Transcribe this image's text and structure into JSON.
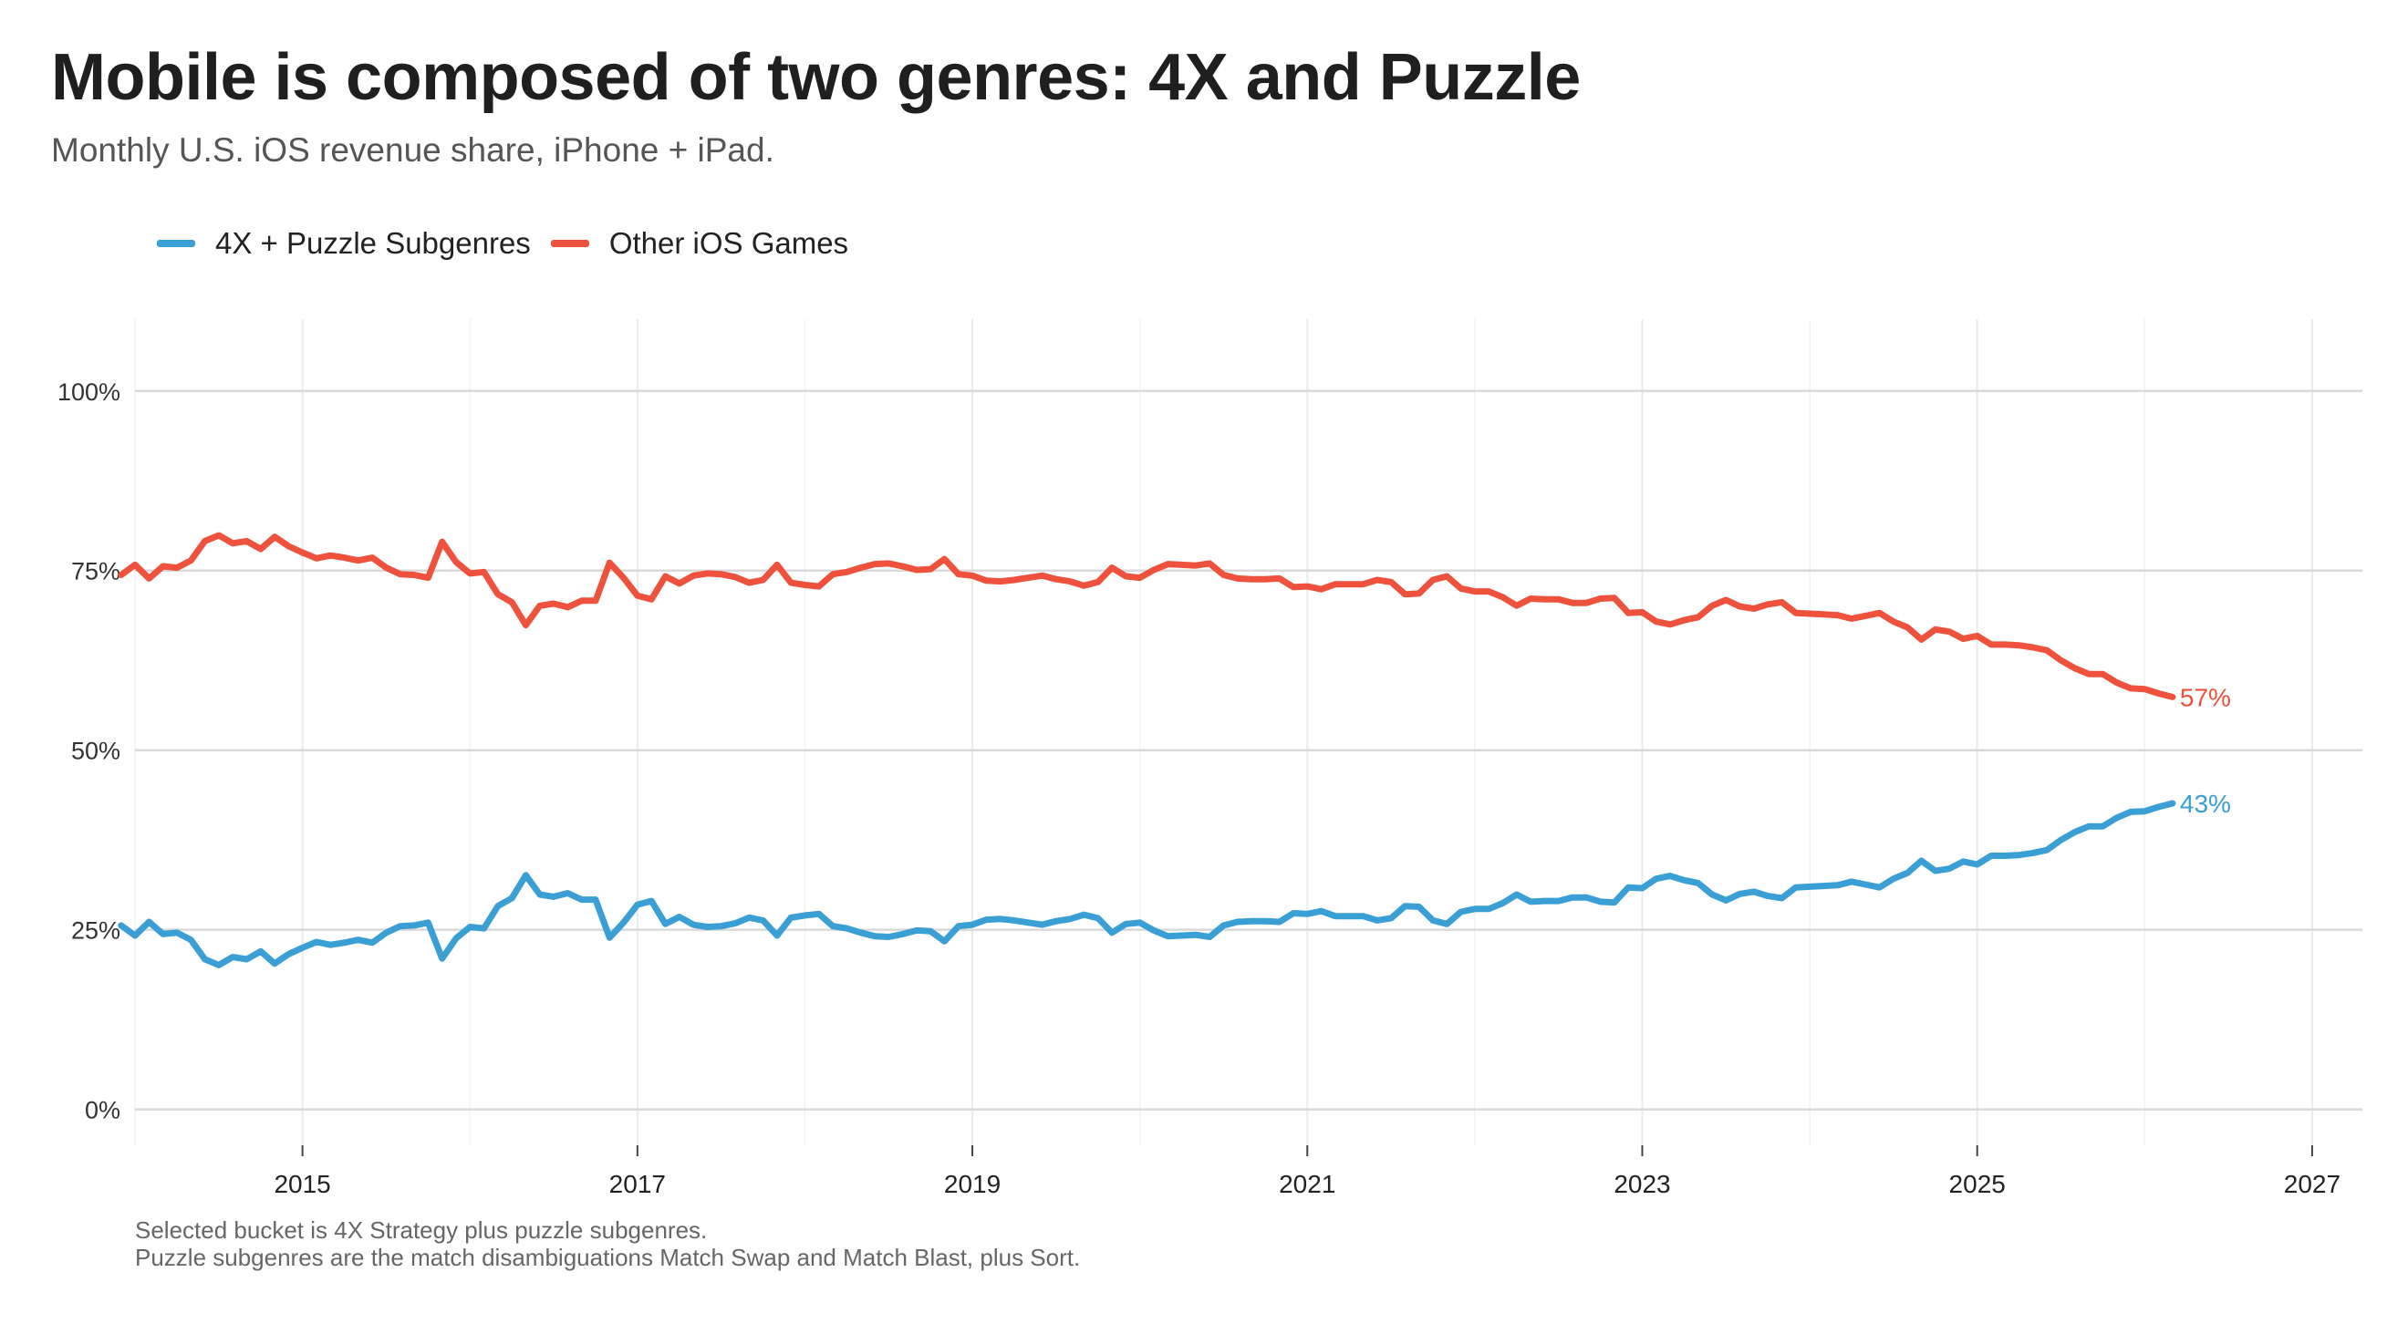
{
  "title": "Mobile is composed of two genres: 4X and Puzzle",
  "subtitle": "Monthly U.S. iOS revenue share, iPhone + iPad.",
  "footer": {
    "line1": "Selected bucket is 4X Strategy plus puzzle subgenres.",
    "line2": "Puzzle subgenres are the match disambiguations Match Swap and Match Blast, plus Sort."
  },
  "chart_data": {
    "type": "line",
    "legend_position": "top-left",
    "grid": true,
    "xlim": [
      2014.0,
      2027.3
    ],
    "ylim": [
      -5,
      110
    ],
    "x_ticks": [
      2015,
      2017,
      2019,
      2021,
      2023,
      2025,
      2027
    ],
    "x_tick_labels": [
      "2015",
      "2017",
      "2019",
      "2021",
      "2023",
      "2025",
      "2027"
    ],
    "y_ticks": [
      0,
      25,
      50,
      75,
      100
    ],
    "y_tick_labels": [
      "0%",
      "25%",
      "50%",
      "75%",
      "100%"
    ],
    "x_start": 2013.917,
    "x_step": 0.08333,
    "series": [
      {
        "name": "4X + Puzzle Subgenres",
        "color": "#3a9fd4",
        "end_label": "43%",
        "values": [
          25.6,
          24.2,
          26.1,
          24.4,
          24.6,
          23.6,
          20.9,
          20.1,
          21.2,
          20.9,
          22.0,
          20.3,
          21.6,
          22.5,
          23.3,
          22.9,
          23.2,
          23.6,
          23.2,
          24.6,
          25.5,
          25.6,
          26.0,
          21.0,
          23.8,
          25.4,
          25.2,
          28.3,
          29.4,
          32.6,
          29.9,
          29.6,
          30.1,
          29.2,
          29.2,
          23.9,
          26.0,
          28.5,
          29.0,
          25.8,
          26.8,
          25.7,
          25.4,
          25.5,
          25.9,
          26.7,
          26.3,
          24.2,
          26.7,
          27.0,
          27.2,
          25.5,
          25.2,
          24.6,
          24.1,
          24.0,
          24.4,
          24.9,
          24.8,
          23.4,
          25.5,
          25.7,
          26.4,
          26.5,
          26.3,
          26.0,
          25.7,
          26.2,
          26.5,
          27.1,
          26.6,
          24.6,
          25.8,
          26.0,
          24.9,
          24.1,
          24.2,
          24.3,
          24.0,
          25.6,
          26.1,
          26.2,
          26.2,
          26.1,
          27.3,
          27.2,
          27.6,
          26.9,
          26.9,
          26.9,
          26.3,
          26.6,
          28.3,
          28.2,
          26.3,
          25.8,
          27.5,
          27.9,
          27.9,
          28.7,
          29.9,
          28.9,
          29.0,
          29.0,
          29.5,
          29.5,
          28.9,
          28.8,
          30.9,
          30.8,
          32.1,
          32.5,
          31.9,
          31.5,
          29.9,
          29.1,
          30.0,
          30.3,
          29.7,
          29.4,
          30.9,
          31.0,
          31.1,
          31.2,
          31.7,
          31.3,
          30.9,
          32.1,
          32.9,
          34.6,
          33.2,
          33.5,
          34.5,
          34.1,
          35.3,
          35.3,
          35.4,
          35.7,
          36.1,
          37.5,
          38.6,
          39.4,
          39.4,
          40.6,
          41.4,
          41.5,
          42.1,
          42.6
        ]
      },
      {
        "name": "Other iOS Games",
        "color": "#ee523d",
        "end_label": "57%",
        "values": [
          74.4,
          75.8,
          73.9,
          75.6,
          75.4,
          76.4,
          79.1,
          79.9,
          78.8,
          79.1,
          78.0,
          79.7,
          78.4,
          77.5,
          76.7,
          77.1,
          76.8,
          76.4,
          76.8,
          75.4,
          74.5,
          74.4,
          74.0,
          79.0,
          76.2,
          74.6,
          74.8,
          71.7,
          70.6,
          67.4,
          70.1,
          70.4,
          69.9,
          70.8,
          70.8,
          76.1,
          74.0,
          71.5,
          71.0,
          74.2,
          73.2,
          74.3,
          74.6,
          74.5,
          74.1,
          73.3,
          73.7,
          75.8,
          73.3,
          73.0,
          72.8,
          74.5,
          74.8,
          75.4,
          75.9,
          76.0,
          75.6,
          75.1,
          75.2,
          76.6,
          74.5,
          74.3,
          73.6,
          73.5,
          73.7,
          74.0,
          74.3,
          73.8,
          73.5,
          72.9,
          73.4,
          75.4,
          74.2,
          74.0,
          75.1,
          75.9,
          75.8,
          75.7,
          76.0,
          74.4,
          73.9,
          73.8,
          73.8,
          73.9,
          72.7,
          72.8,
          72.4,
          73.1,
          73.1,
          73.1,
          73.7,
          73.4,
          71.7,
          71.8,
          73.7,
          74.2,
          72.5,
          72.1,
          72.1,
          71.3,
          70.1,
          71.1,
          71.0,
          71.0,
          70.5,
          70.5,
          71.1,
          71.2,
          69.1,
          69.2,
          67.9,
          67.5,
          68.1,
          68.5,
          70.1,
          70.9,
          70.0,
          69.7,
          70.3,
          70.6,
          69.1,
          69.0,
          68.9,
          68.8,
          68.3,
          68.7,
          69.1,
          67.9,
          67.1,
          65.4,
          66.8,
          66.5,
          65.5,
          65.9,
          64.7,
          64.7,
          64.6,
          64.3,
          63.9,
          62.5,
          61.4,
          60.6,
          60.6,
          59.4,
          58.6,
          58.5,
          57.9,
          57.4
        ]
      }
    ]
  }
}
